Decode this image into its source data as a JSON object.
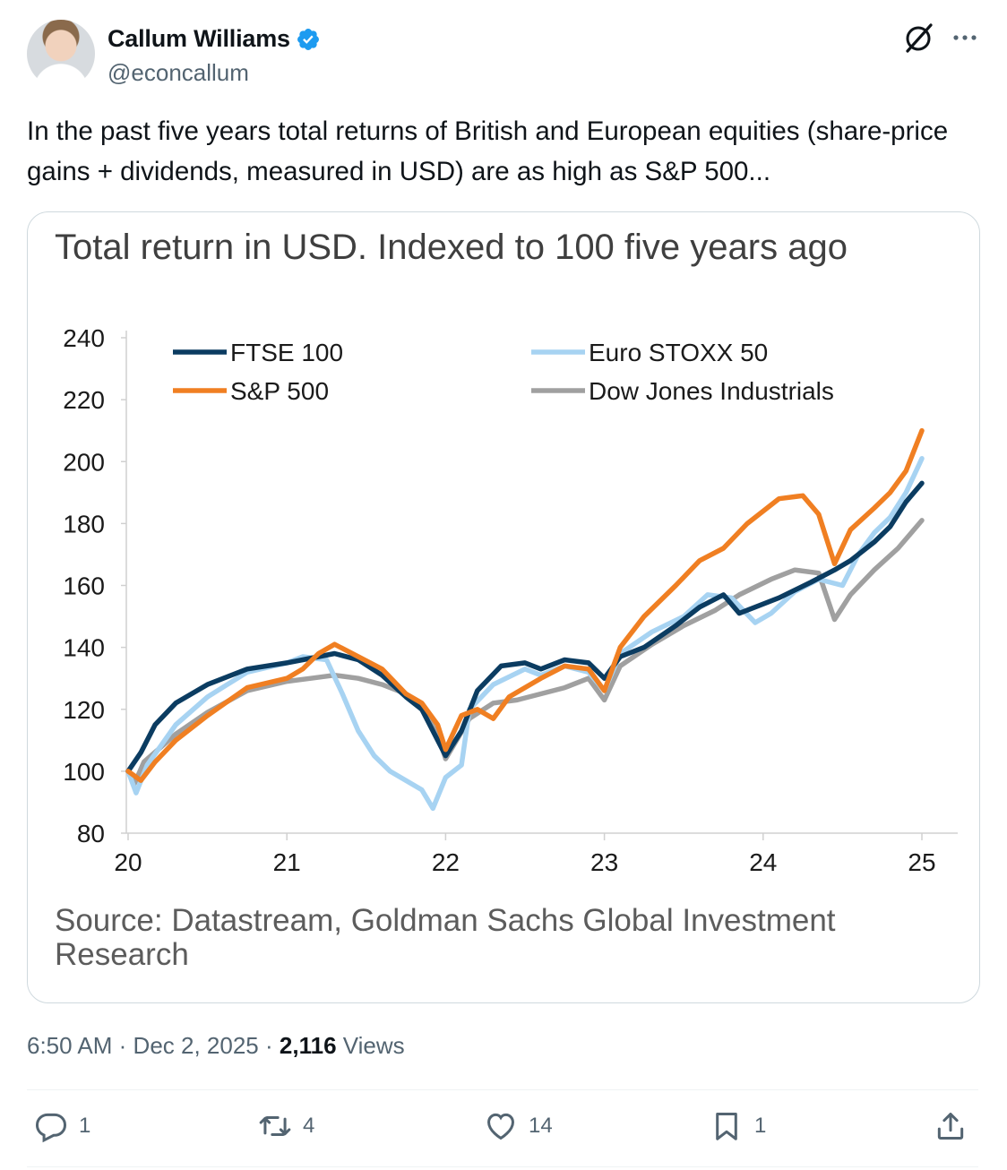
{
  "author": {
    "name": "Callum Williams",
    "handle": "@econcallum",
    "verified_color": "#1d9bf0"
  },
  "icons": {
    "grok": "grok-icon",
    "more": "more-icon",
    "verified": "verified-badge-icon"
  },
  "tweet": {
    "text": "In the past five years total returns of British and European equities (share-price gains + dividends, measured in USD) are as high as S&P 500..."
  },
  "meta": {
    "time": "6:50 AM",
    "sep1": "·",
    "date": "Dec 2, 2025",
    "sep2": "·",
    "views_count": "2,116",
    "views_label": "Views"
  },
  "actions": {
    "reply_count": "1",
    "repost_count": "4",
    "like_count": "14",
    "bookmark_count": "1"
  },
  "chart_data": {
    "type": "line",
    "title": "Total return in USD. Indexed to 100 five years ago",
    "source": "Source: Datastream, Goldman Sachs Global Investment Research",
    "xlim": [
      20,
      25
    ],
    "ylim": [
      80,
      240
    ],
    "x_ticks": [
      "20",
      "21",
      "22",
      "23",
      "24",
      "25"
    ],
    "y_ticks": [
      "240",
      "220",
      "200",
      "180",
      "160",
      "140",
      "120",
      "100",
      "80"
    ],
    "legend_placement": "top",
    "grid": false,
    "series": [
      {
        "name": "FTSE 100",
        "color": "#0b3c61",
        "points": [
          [
            20.0,
            100
          ],
          [
            20.08,
            106
          ],
          [
            20.17,
            115
          ],
          [
            20.3,
            122
          ],
          [
            20.5,
            128
          ],
          [
            20.75,
            133
          ],
          [
            21.0,
            135
          ],
          [
            21.1,
            136
          ],
          [
            21.3,
            138
          ],
          [
            21.45,
            136
          ],
          [
            21.6,
            131
          ],
          [
            21.75,
            124
          ],
          [
            21.85,
            120
          ],
          [
            21.95,
            110
          ],
          [
            22.0,
            105
          ],
          [
            22.1,
            113
          ],
          [
            22.2,
            126
          ],
          [
            22.35,
            134
          ],
          [
            22.5,
            135
          ],
          [
            22.6,
            133
          ],
          [
            22.75,
            136
          ],
          [
            22.9,
            135
          ],
          [
            23.0,
            130
          ],
          [
            23.1,
            137
          ],
          [
            23.25,
            140
          ],
          [
            23.45,
            147
          ],
          [
            23.6,
            153
          ],
          [
            23.75,
            157
          ],
          [
            23.85,
            151
          ],
          [
            23.95,
            153
          ],
          [
            24.1,
            156
          ],
          [
            24.3,
            161
          ],
          [
            24.45,
            165
          ],
          [
            24.55,
            168
          ],
          [
            24.7,
            174
          ],
          [
            24.8,
            179
          ],
          [
            24.9,
            187
          ],
          [
            25.0,
            193
          ]
        ]
      },
      {
        "name": "S&P 500",
        "color": "#f07f22",
        "points": [
          [
            20.0,
            100
          ],
          [
            20.08,
            97
          ],
          [
            20.17,
            103
          ],
          [
            20.3,
            110
          ],
          [
            20.5,
            118
          ],
          [
            20.75,
            127
          ],
          [
            21.0,
            130
          ],
          [
            21.1,
            133
          ],
          [
            21.2,
            138
          ],
          [
            21.3,
            141
          ],
          [
            21.45,
            137
          ],
          [
            21.6,
            133
          ],
          [
            21.75,
            125
          ],
          [
            21.85,
            122
          ],
          [
            21.95,
            115
          ],
          [
            22.0,
            107
          ],
          [
            22.1,
            118
          ],
          [
            22.2,
            120
          ],
          [
            22.3,
            117
          ],
          [
            22.4,
            124
          ],
          [
            22.6,
            130
          ],
          [
            22.75,
            134
          ],
          [
            22.9,
            133
          ],
          [
            23.0,
            126
          ],
          [
            23.1,
            140
          ],
          [
            23.25,
            150
          ],
          [
            23.45,
            160
          ],
          [
            23.6,
            168
          ],
          [
            23.75,
            172
          ],
          [
            23.9,
            180
          ],
          [
            24.1,
            188
          ],
          [
            24.25,
            189
          ],
          [
            24.35,
            183
          ],
          [
            24.45,
            167
          ],
          [
            24.55,
            178
          ],
          [
            24.7,
            185
          ],
          [
            24.8,
            190
          ],
          [
            24.9,
            197
          ],
          [
            25.0,
            210
          ]
        ]
      },
      {
        "name": "Euro STOXX 50",
        "color": "#a7d3f2",
        "points": [
          [
            20.0,
            100
          ],
          [
            20.05,
            93
          ],
          [
            20.12,
            102
          ],
          [
            20.3,
            115
          ],
          [
            20.5,
            124
          ],
          [
            20.75,
            132
          ],
          [
            21.0,
            135
          ],
          [
            21.1,
            137
          ],
          [
            21.25,
            136
          ],
          [
            21.35,
            125
          ],
          [
            21.45,
            113
          ],
          [
            21.55,
            105
          ],
          [
            21.65,
            100
          ],
          [
            21.75,
            97
          ],
          [
            21.85,
            94
          ],
          [
            21.92,
            88
          ],
          [
            22.0,
            98
          ],
          [
            22.1,
            102
          ],
          [
            22.15,
            120
          ],
          [
            22.3,
            128
          ],
          [
            22.5,
            133
          ],
          [
            22.6,
            131
          ],
          [
            22.75,
            134
          ],
          [
            22.9,
            132
          ],
          [
            23.0,
            126
          ],
          [
            23.1,
            138
          ],
          [
            23.3,
            145
          ],
          [
            23.5,
            150
          ],
          [
            23.65,
            157
          ],
          [
            23.8,
            156
          ],
          [
            23.95,
            148
          ],
          [
            24.05,
            151
          ],
          [
            24.2,
            158
          ],
          [
            24.35,
            162
          ],
          [
            24.5,
            160
          ],
          [
            24.6,
            170
          ],
          [
            24.7,
            177
          ],
          [
            24.8,
            182
          ],
          [
            24.9,
            190
          ],
          [
            25.0,
            201
          ]
        ]
      },
      {
        "name": "Dow Jones Industrials",
        "color": "#a0a0a0",
        "points": [
          [
            20.0,
            100
          ],
          [
            20.04,
            96
          ],
          [
            20.1,
            103
          ],
          [
            20.3,
            112
          ],
          [
            20.5,
            119
          ],
          [
            20.75,
            126
          ],
          [
            21.0,
            129
          ],
          [
            21.15,
            130
          ],
          [
            21.3,
            131
          ],
          [
            21.45,
            130
          ],
          [
            21.6,
            128
          ],
          [
            21.75,
            125
          ],
          [
            21.85,
            120
          ],
          [
            21.95,
            112
          ],
          [
            22.0,
            104
          ],
          [
            22.15,
            117
          ],
          [
            22.3,
            122
          ],
          [
            22.45,
            123
          ],
          [
            22.6,
            125
          ],
          [
            22.75,
            127
          ],
          [
            22.9,
            130
          ],
          [
            23.0,
            123
          ],
          [
            23.1,
            134
          ],
          [
            23.3,
            141
          ],
          [
            23.5,
            147
          ],
          [
            23.7,
            152
          ],
          [
            23.85,
            157
          ],
          [
            24.05,
            162
          ],
          [
            24.2,
            165
          ],
          [
            24.35,
            164
          ],
          [
            24.45,
            149
          ],
          [
            24.55,
            157
          ],
          [
            24.7,
            165
          ],
          [
            24.85,
            172
          ],
          [
            25.0,
            181
          ]
        ]
      }
    ]
  }
}
